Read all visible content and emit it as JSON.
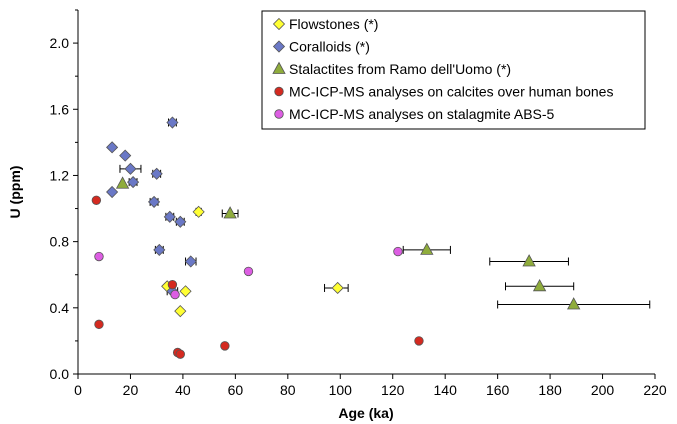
{
  "chart_data": {
    "type": "scatter",
    "xlabel": "Age (ka)",
    "ylabel": "U (ppm)",
    "xlim": [
      0,
      220
    ],
    "ylim": [
      0,
      2.2
    ],
    "xticks": [
      "0",
      "20",
      "40",
      "60",
      "80",
      "100",
      "120",
      "140",
      "160",
      "180",
      "200",
      "220"
    ],
    "yticks": [
      "0.0",
      "0.4",
      "0.8",
      "1.2",
      "1.6",
      "2.0"
    ],
    "legend_position": "top-right",
    "series": [
      {
        "name": "Flowstones (*)",
        "marker": "diamond",
        "color": "#ffff33",
        "points": [
          {
            "x": 34,
            "y": 0.53,
            "xerr": [
              0,
              0
            ]
          },
          {
            "x": 39,
            "y": 0.38,
            "xerr": [
              0,
              0
            ]
          },
          {
            "x": 41,
            "y": 0.5,
            "xerr": [
              0,
              0
            ]
          },
          {
            "x": 46,
            "y": 0.98,
            "xerr": [
              1,
              1
            ]
          },
          {
            "x": 99,
            "y": 0.52,
            "xerr": [
              5,
              4
            ]
          }
        ]
      },
      {
        "name": "Coralloids (*)",
        "marker": "diamond",
        "color": "#6a78c6",
        "points": [
          {
            "x": 13,
            "y": 1.37,
            "xerr": [
              0,
              0
            ]
          },
          {
            "x": 13,
            "y": 1.1,
            "xerr": [
              0,
              0
            ]
          },
          {
            "x": 18,
            "y": 1.32,
            "xerr": [
              0,
              0
            ]
          },
          {
            "x": 20,
            "y": 1.24,
            "xerr": [
              4,
              4
            ]
          },
          {
            "x": 21,
            "y": 1.16,
            "xerr": [
              1.5,
              1.5
            ]
          },
          {
            "x": 30,
            "y": 1.21,
            "xerr": [
              1.5,
              1.5
            ]
          },
          {
            "x": 29,
            "y": 1.04,
            "xerr": [
              1.5,
              1.5
            ]
          },
          {
            "x": 31,
            "y": 0.75,
            "xerr": [
              1.5,
              1.5
            ]
          },
          {
            "x": 35,
            "y": 0.95,
            "xerr": [
              1.5,
              1.5
            ]
          },
          {
            "x": 36,
            "y": 1.52,
            "xerr": [
              1.5,
              1.5
            ]
          },
          {
            "x": 39,
            "y": 0.92,
            "xerr": [
              1.5,
              1.5
            ]
          },
          {
            "x": 43,
            "y": 0.68,
            "xerr": [
              2,
              2
            ]
          },
          {
            "x": 36,
            "y": 0.5,
            "xerr": [
              2,
              2
            ]
          }
        ]
      },
      {
        "name": "Stalactites from Ramo dell'Uomo (*)",
        "marker": "triangle",
        "color": "#8fac3c",
        "points": [
          {
            "x": 17,
            "y": 1.15,
            "xerr": [
              0,
              0
            ]
          },
          {
            "x": 58,
            "y": 0.97,
            "xerr": [
              3,
              3
            ]
          },
          {
            "x": 133,
            "y": 0.75,
            "xerr": [
              9,
              9
            ]
          },
          {
            "x": 172,
            "y": 0.68,
            "xerr": [
              15,
              15
            ]
          },
          {
            "x": 176,
            "y": 0.53,
            "xerr": [
              13,
              13
            ]
          },
          {
            "x": 189,
            "y": 0.42,
            "xerr": [
              29,
              29
            ]
          }
        ]
      },
      {
        "name": "MC-ICP-MS analyses on calcites over human bones",
        "marker": "circle",
        "color": "#d42a20",
        "points": [
          {
            "x": 7,
            "y": 1.05
          },
          {
            "x": 8,
            "y": 0.3
          },
          {
            "x": 36,
            "y": 0.54
          },
          {
            "x": 38,
            "y": 0.13
          },
          {
            "x": 39,
            "y": 0.12
          },
          {
            "x": 56,
            "y": 0.17
          },
          {
            "x": 130,
            "y": 0.2
          }
        ]
      },
      {
        "name": "MC-ICP-MS analyses on stalagmite ABS-5",
        "marker": "circle",
        "color": "#dd5ee3",
        "points": [
          {
            "x": 8,
            "y": 0.71
          },
          {
            "x": 37,
            "y": 0.48
          },
          {
            "x": 65,
            "y": 0.62
          },
          {
            "x": 122,
            "y": 0.74
          }
        ]
      }
    ]
  }
}
